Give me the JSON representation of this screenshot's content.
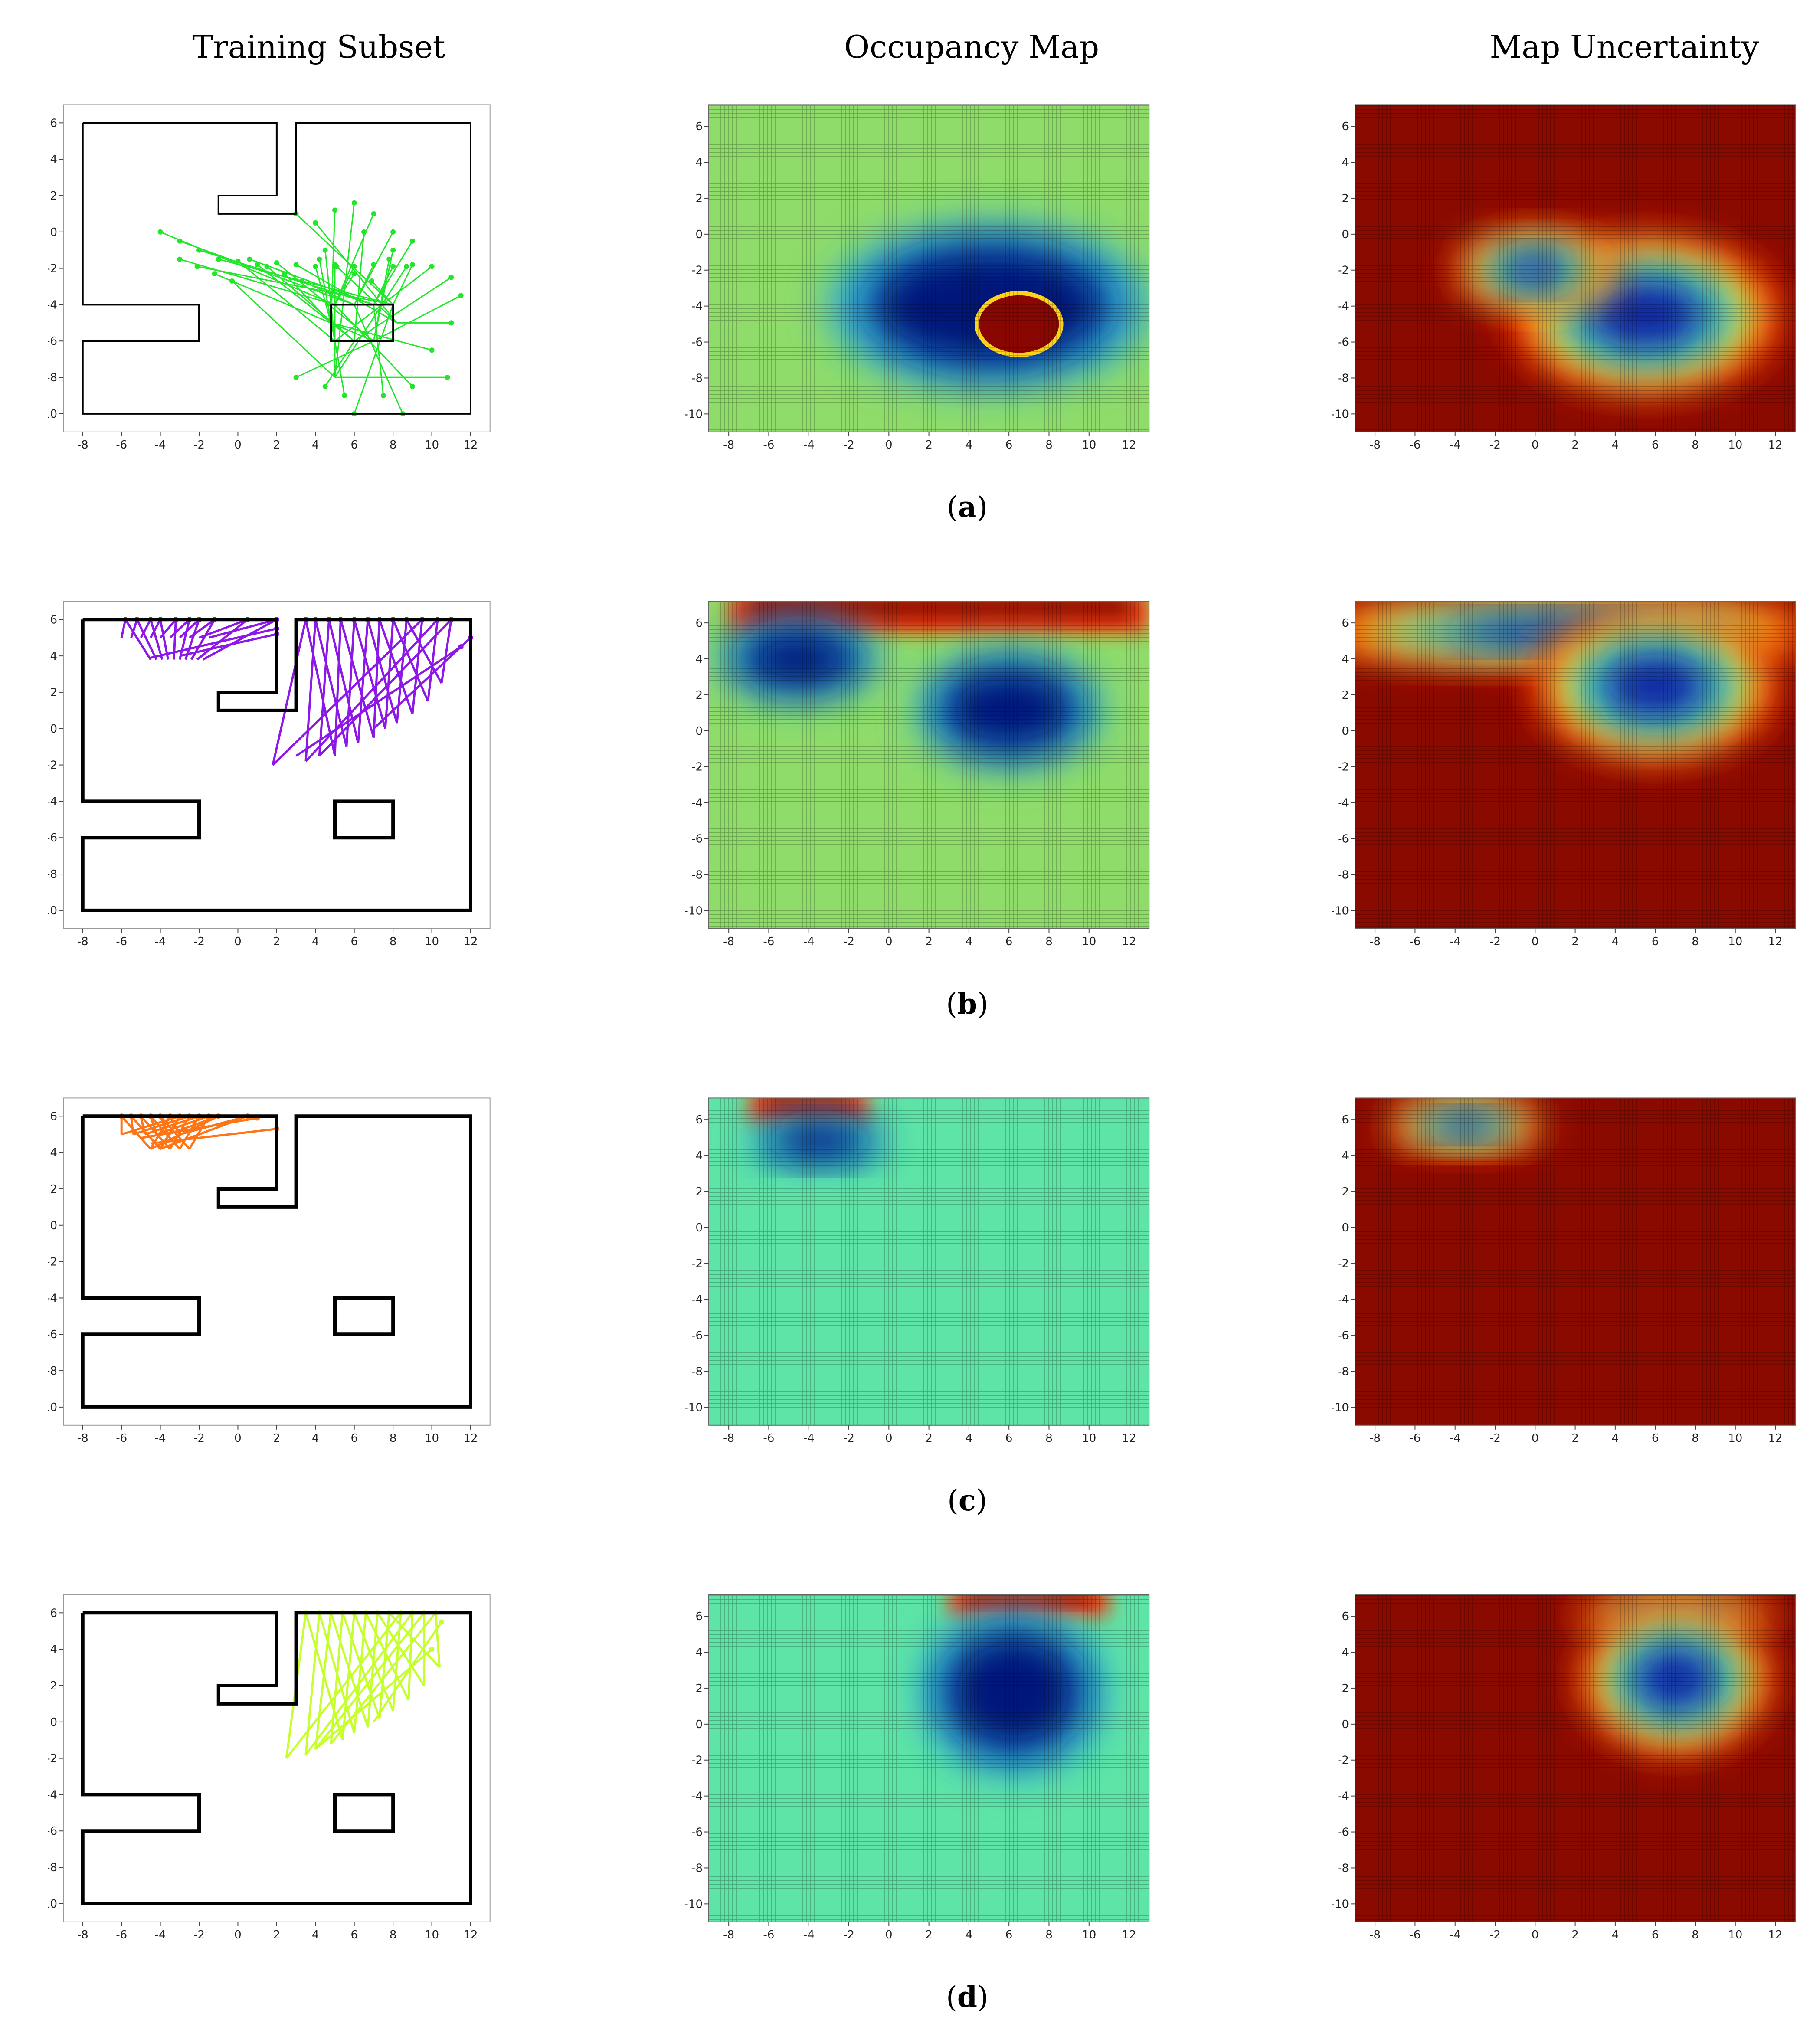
{
  "column_titles": [
    "Training Subset",
    "Occupancy Map",
    "Map Uncertainty"
  ],
  "captions": [
    "a",
    "b",
    "c",
    "d"
  ],
  "colors": {
    "ray_a": "#22e62a",
    "ray_b": "#8c17e6",
    "ray_c": "#ff7414",
    "ray_d": "#c6ff2e",
    "walls": "#000000"
  },
  "chart_data": [
    {
      "row": "a",
      "panel": "training",
      "type": "line",
      "xlim": [
        -9,
        13
      ],
      "ylim": [
        -11,
        7
      ],
      "xticks": [
        -8,
        -6,
        -4,
        -2,
        0,
        2,
        4,
        6,
        8,
        10,
        12
      ],
      "yticks": [
        -10,
        -8,
        -6,
        -4,
        -2,
        0,
        2,
        4,
        6
      ],
      "rays": "rays_a",
      "box": [
        [
          4.8,
          -6
        ],
        [
          8,
          -4
        ]
      ]
    },
    {
      "row": "a",
      "panel": "occupancy",
      "type": "heatmap",
      "xlim": [
        -9,
        13
      ],
      "ylim": [
        -11,
        7.2
      ],
      "xticks": [
        -8,
        -6,
        -4,
        -2,
        0,
        2,
        4,
        6,
        8,
        10,
        12
      ],
      "yticks": [
        -10,
        -8,
        -6,
        -4,
        -2,
        0,
        2,
        4,
        6
      ],
      "background": "occ_bg",
      "free_regions": [
        {
          "cx": 5,
          "cy": -4,
          "rx": 7,
          "ry": 4
        }
      ],
      "occupied_regions": [
        {
          "cx": 6.5,
          "cy": -5,
          "rx": 2,
          "ry": 1.6
        }
      ]
    },
    {
      "row": "a",
      "panel": "uncertainty",
      "type": "heatmap",
      "xlim": [
        -9,
        13
      ],
      "ylim": [
        -11,
        7.2
      ],
      "xticks": [
        -8,
        -6,
        -4,
        -2,
        0,
        2,
        4,
        6,
        8,
        10,
        12
      ],
      "yticks": [
        -10,
        -8,
        -6,
        -4,
        -2,
        0,
        2,
        4,
        6
      ],
      "low_regions": [
        {
          "cx": 5.5,
          "cy": -4.5,
          "rx": 5,
          "ry": 3.2
        },
        {
          "cx": 0,
          "cy": -2,
          "rx": 3,
          "ry": 1.5
        }
      ]
    },
    {
      "row": "b",
      "panel": "training",
      "type": "line",
      "xlim": [
        -9,
        13
      ],
      "ylim": [
        -11,
        7
      ],
      "xticks": [
        -8,
        -6,
        -4,
        -2,
        0,
        2,
        4,
        6,
        8,
        10,
        12
      ],
      "yticks": [
        -10,
        -8,
        -6,
        -4,
        -2,
        0,
        2,
        4,
        6
      ],
      "rays": "rays_b",
      "box": [
        [
          5,
          -6
        ],
        [
          8,
          -4
        ]
      ]
    },
    {
      "row": "b",
      "panel": "occupancy",
      "type": "heatmap",
      "xlim": [
        -9,
        13
      ],
      "ylim": [
        -11,
        7.2
      ],
      "xticks": [
        -8,
        -6,
        -4,
        -2,
        0,
        2,
        4,
        6,
        8,
        10,
        12
      ],
      "yticks": [
        -10,
        -8,
        -6,
        -4,
        -2,
        0,
        2,
        4,
        6
      ],
      "background": "occ_bg",
      "free_regions": [
        {
          "cx": -4.5,
          "cy": 4,
          "rx": 3.5,
          "ry": 2
        },
        {
          "cx": 6,
          "cy": 1.2,
          "rx": 4,
          "ry": 2.8
        }
      ],
      "occupied_band": {
        "y": 6.2
      }
    },
    {
      "row": "b",
      "panel": "uncertainty",
      "type": "heatmap",
      "xlim": [
        -9,
        13
      ],
      "ylim": [
        -11,
        7.2
      ],
      "xticks": [
        -8,
        -6,
        -4,
        -2,
        0,
        2,
        4,
        6,
        8,
        10,
        12
      ],
      "yticks": [
        -10,
        -8,
        -6,
        -4,
        -2,
        0,
        2,
        4,
        6
      ],
      "low_regions": [
        {
          "cx": 1.5,
          "cy": 5.5,
          "rx": 10,
          "ry": 1.3
        },
        {
          "cx": 6,
          "cy": 2.5,
          "rx": 4.5,
          "ry": 3
        }
      ]
    },
    {
      "row": "c",
      "panel": "training",
      "type": "line",
      "xlim": [
        -9,
        13
      ],
      "ylim": [
        -11,
        7
      ],
      "xticks": [
        -8,
        -6,
        -4,
        -2,
        0,
        2,
        4,
        6,
        8,
        10,
        12
      ],
      "yticks": [
        -10,
        -8,
        -6,
        -4,
        -2,
        0,
        2,
        4,
        6
      ],
      "rays": "rays_c",
      "box": [
        [
          5,
          -6
        ],
        [
          8,
          -4
        ]
      ]
    },
    {
      "row": "c",
      "panel": "occupancy",
      "type": "heatmap",
      "xlim": [
        -9,
        13
      ],
      "ylim": [
        -11,
        7.2
      ],
      "xticks": [
        -8,
        -6,
        -4,
        -2,
        0,
        2,
        4,
        6,
        8,
        10,
        12
      ],
      "yticks": [
        -10,
        -8,
        -6,
        -4,
        -2,
        0,
        2,
        4,
        6
      ],
      "background": "occ_bg2",
      "free_regions": [
        {
          "cx": -3.5,
          "cy": 4.8,
          "rx": 3,
          "ry": 1.2
        }
      ],
      "occupied_band": {
        "y": 6.6,
        "x0": -7,
        "x1": -1
      }
    },
    {
      "row": "c",
      "panel": "uncertainty",
      "type": "heatmap",
      "xlim": [
        -9,
        13
      ],
      "ylim": [
        -11,
        7.2
      ],
      "xticks": [
        -8,
        -6,
        -4,
        -2,
        0,
        2,
        4,
        6,
        8,
        10,
        12
      ],
      "yticks": [
        -10,
        -8,
        -6,
        -4,
        -2,
        0,
        2,
        4,
        6
      ],
      "low_regions": [
        {
          "cx": -3.5,
          "cy": 5.7,
          "rx": 3,
          "ry": 1
        }
      ]
    },
    {
      "row": "d",
      "panel": "training",
      "type": "line",
      "xlim": [
        -9,
        13
      ],
      "ylim": [
        -11,
        7
      ],
      "xticks": [
        -8,
        -6,
        -4,
        -2,
        0,
        2,
        4,
        6,
        8,
        10,
        12
      ],
      "yticks": [
        -10,
        -8,
        -6,
        -4,
        -2,
        0,
        2,
        4,
        6
      ],
      "rays": "rays_d",
      "box": [
        [
          5,
          -6
        ],
        [
          8,
          -4
        ]
      ]
    },
    {
      "row": "d",
      "panel": "occupancy",
      "type": "heatmap",
      "xlim": [
        -9,
        13
      ],
      "ylim": [
        -11,
        7.2
      ],
      "xticks": [
        -8,
        -6,
        -4,
        -2,
        0,
        2,
        4,
        6,
        8,
        10,
        12
      ],
      "yticks": [
        -10,
        -8,
        -6,
        -4,
        -2,
        0,
        2,
        4,
        6
      ],
      "background": "occ_bg2",
      "free_regions": [
        {
          "cx": 6.2,
          "cy": 1.8,
          "rx": 4,
          "ry": 4
        }
      ],
      "occupied_band": {
        "y": 6.7,
        "x0": 3,
        "x1": 11
      }
    },
    {
      "row": "d",
      "panel": "uncertainty",
      "type": "heatmap",
      "xlim": [
        -9,
        13
      ],
      "ylim": [
        -11,
        7.2
      ],
      "xticks": [
        -8,
        -6,
        -4,
        -2,
        0,
        2,
        4,
        6,
        8,
        10,
        12
      ],
      "yticks": [
        -10,
        -8,
        -6,
        -4,
        -2,
        0,
        2,
        4,
        6
      ],
      "low_regions": [
        {
          "cx": 7,
          "cy": 6,
          "rx": 4,
          "ry": 0.6
        },
        {
          "cx": 7,
          "cy": 2.5,
          "rx": 3.5,
          "ry": 3
        }
      ]
    }
  ]
}
